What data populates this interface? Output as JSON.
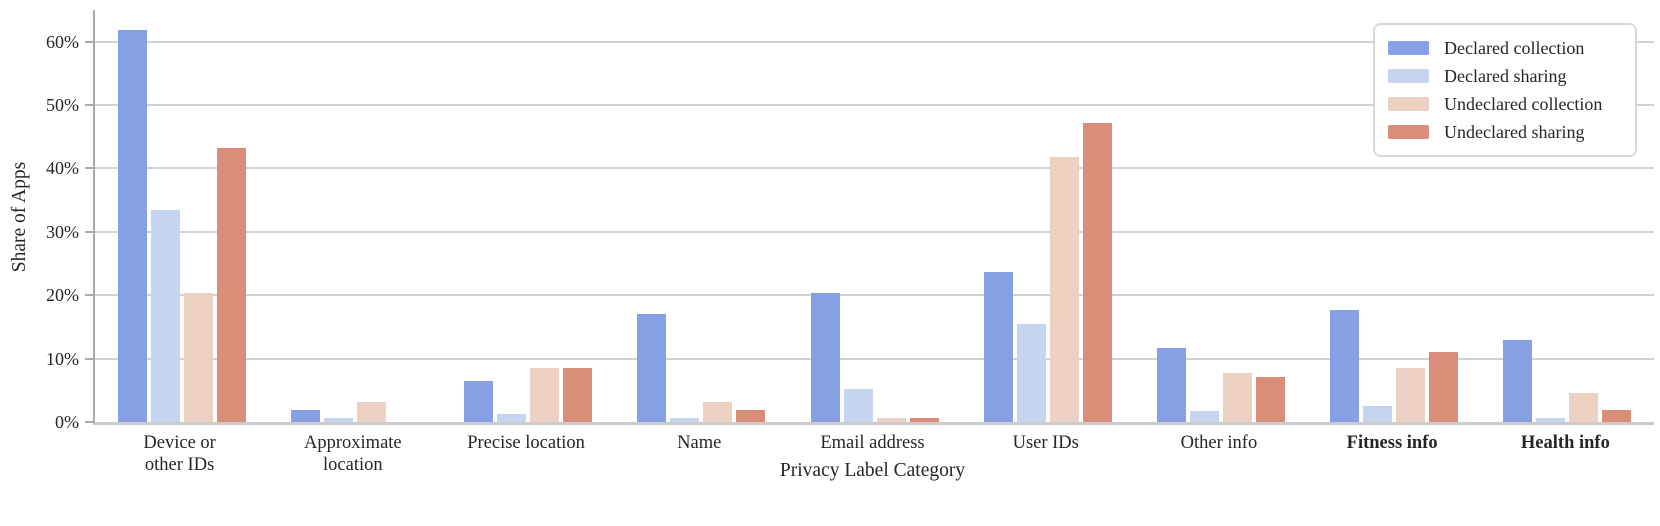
{
  "figure": {
    "background": "#ffffff",
    "text_color": "#262626",
    "grid_color": "#d2d2d2",
    "axis_color": "#aaaaaa"
  },
  "chart_data": {
    "type": "bar",
    "title": "",
    "xlabel": "Privacy Label Category",
    "ylabel": "Share of Apps",
    "ylim": [
      0,
      65
    ],
    "grid": true,
    "legend_position": "upper right",
    "yticks": [
      {
        "value": 0,
        "label": "0%"
      },
      {
        "value": 10,
        "label": "10%"
      },
      {
        "value": 20,
        "label": "20%"
      },
      {
        "value": 30,
        "label": "30%"
      },
      {
        "value": 40,
        "label": "40%"
      },
      {
        "value": 50,
        "label": "50%"
      },
      {
        "value": 60,
        "label": "60%"
      }
    ],
    "categories": [
      {
        "label": "Device or\nother IDs",
        "bold": false
      },
      {
        "label": "Approximate\nlocation",
        "bold": false
      },
      {
        "label": "Precise location",
        "bold": false
      },
      {
        "label": "Name",
        "bold": false
      },
      {
        "label": "Email address",
        "bold": false
      },
      {
        "label": "User IDs",
        "bold": false
      },
      {
        "label": "Other info",
        "bold": false
      },
      {
        "label": "Fitness info",
        "bold": true
      },
      {
        "label": "Health info",
        "bold": true
      }
    ],
    "series": [
      {
        "name": "Declared collection",
        "color": "#86a0e4",
        "values": [
          61.8,
          1.9,
          6.5,
          17.0,
          20.3,
          23.6,
          11.6,
          17.7,
          13.0
        ]
      },
      {
        "name": "Declared sharing",
        "color": "#c6d5ef",
        "values": [
          33.5,
          0.6,
          1.2,
          0.6,
          5.2,
          15.5,
          1.8,
          2.6,
          0.6
        ]
      },
      {
        "name": "Undeclared collection",
        "color": "#ecd0c2",
        "values": [
          20.4,
          3.2,
          8.5,
          3.2,
          0.6,
          41.8,
          7.7,
          8.5,
          4.5
        ]
      },
      {
        "name": "Undeclared sharing",
        "color": "#da8e79",
        "values": [
          43.3,
          0.0,
          8.5,
          1.9,
          0.6,
          47.2,
          7.1,
          11.0,
          1.9
        ]
      }
    ]
  }
}
